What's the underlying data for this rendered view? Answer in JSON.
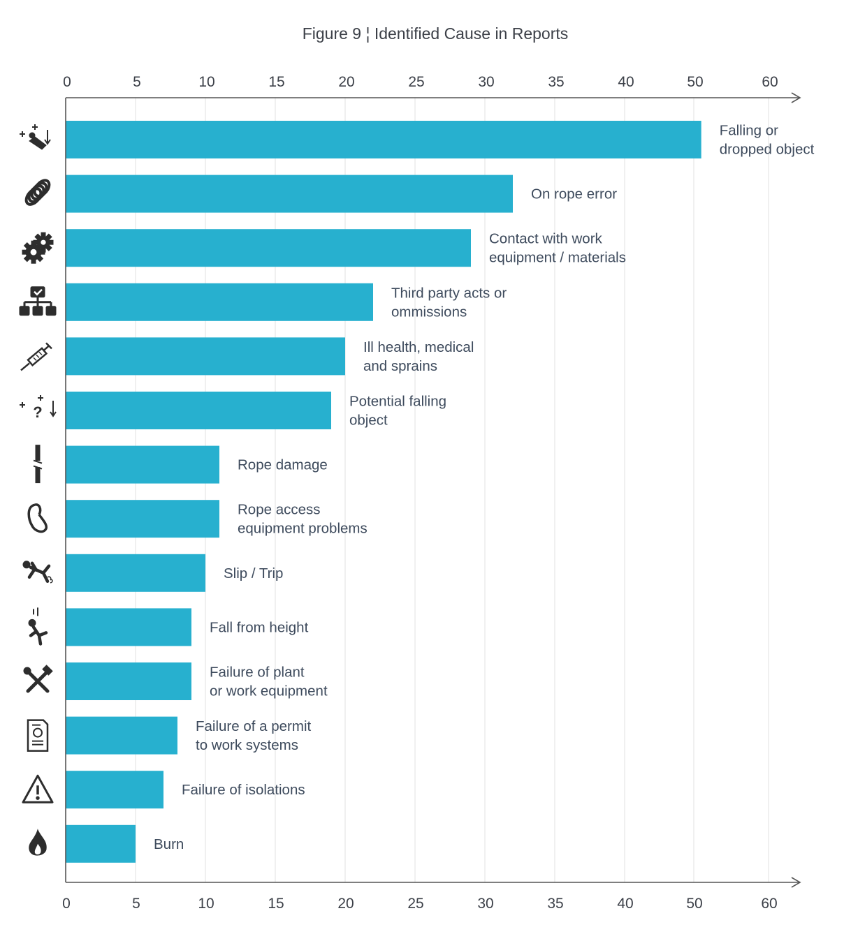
{
  "chart_data": {
    "type": "bar",
    "orientation": "horizontal",
    "title": "Figure 9 ¦ Identified Cause in Reports",
    "xlabel": "",
    "ylabel": "",
    "xlim": [
      0,
      60
    ],
    "x_ticks": [
      0,
      5,
      10,
      15,
      20,
      25,
      30,
      35,
      40,
      50,
      60
    ],
    "grid": true,
    "bar_color": "#27b0cf",
    "categories": [
      "Falling or dropped object",
      "On rope error",
      "Contact with work equipment / materials",
      "Third party acts or ommissions",
      "Ill health, medical and sprains",
      "Potential falling object",
      "Rope damage",
      "Rope access equipment problems",
      "Slip / Trip",
      "Fall from height",
      "Failure of plant or work equipment",
      "Failure of a permit to work systems",
      "Failure of isolations",
      "Burn"
    ],
    "label_lines": [
      [
        "Falling or",
        "dropped object"
      ],
      [
        "On rope error"
      ],
      [
        "Contact with work",
        "equipment / materials"
      ],
      [
        "Third party acts or",
        "ommissions"
      ],
      [
        "Ill health, medical",
        "and sprains"
      ],
      [
        "Potential falling",
        "object"
      ],
      [
        "Rope damage"
      ],
      [
        "Rope access",
        "equipment problems"
      ],
      [
        "Slip / Trip"
      ],
      [
        "Fall from height"
      ],
      [
        "Failure of plant",
        "or work equipment"
      ],
      [
        "Failure of a permit",
        "to work systems"
      ],
      [
        "Failure of isolations"
      ],
      [
        "Burn"
      ]
    ],
    "icons": [
      "falling-object-icon",
      "rope-coil-icon",
      "gears-icon",
      "org-chart-icon",
      "syringe-icon",
      "potential-falling-object-icon",
      "damaged-rope-icon",
      "carabiner-icon",
      "slip-trip-icon",
      "fall-from-height-icon",
      "tools-icon",
      "permit-document-icon",
      "warning-triangle-icon",
      "flame-icon"
    ],
    "values": [
      51,
      32,
      29,
      22,
      20,
      19,
      11,
      11,
      10,
      9,
      9,
      8,
      7,
      5
    ]
  }
}
